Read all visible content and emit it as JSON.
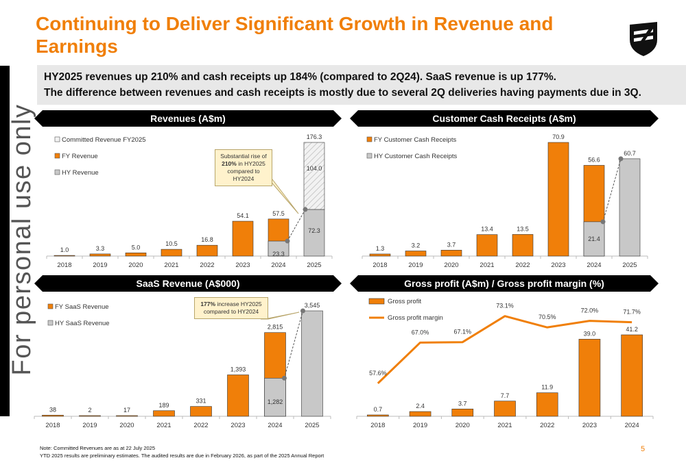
{
  "title": "Continuing to Deliver Significant Growth in Revenue and Earnings",
  "subtitle_lines": [
    "HY2025 revenues up 210% and cash receipts up 184% (compared to 2Q24). SaaS revenue is up 177%.",
    "The difference between revenues and cash receipts is mostly due to several 2Q deliveries having payments due in 3Q."
  ],
  "watermark": "For personal use only",
  "colors": {
    "orange": "#f07f09",
    "grey": "#c8c8c8",
    "black": "#000000"
  },
  "logo_icon": "shield-logo-icon",
  "banners": {
    "revenues": "Revenues (A$m)",
    "cash": "Customer Cash Receipts (A$m)",
    "saas": "SaaS Revenue (A$000)",
    "gross": "Gross profit (A$m) / Gross profit margin (%)"
  },
  "callouts": {
    "revenues": {
      "pre": "Substantial rise of ",
      "bold": "210%",
      "post": " in HY2025 compared to HY2024"
    },
    "saas": {
      "pre": "",
      "bold": "177%",
      "post": " increase HY2025 compared to HY2024"
    }
  },
  "footnotes": [
    "Note: Committed Revenues are as at 22 July 2025",
    "YTD 2025 results are preliminary estimates. The audited results are due in February 2026, as part of the 2025 Annual Report"
  ],
  "page_number": "5",
  "chart_data": [
    {
      "id": "revenues",
      "type": "bar",
      "categories": [
        "2018",
        "2019",
        "2020",
        "2021",
        "2022",
        "2023",
        "2024",
        "2025"
      ],
      "legend": [
        "Committed Revenue FY2025",
        "FY Revenue",
        "HY Revenue"
      ],
      "series": [
        {
          "name": "FY Revenue",
          "values": [
            1.0,
            3.3,
            5.0,
            10.5,
            16.8,
            54.1,
            57.5,
            null
          ],
          "labels": [
            "1.0",
            "3.3",
            "5.0",
            "10.5",
            "16.8",
            "54.1",
            "57.5",
            null
          ]
        },
        {
          "name": "HY Revenue",
          "values": [
            null,
            null,
            null,
            null,
            null,
            null,
            23.3,
            72.3
          ],
          "labels": [
            null,
            null,
            null,
            null,
            null,
            null,
            "23.3",
            "72.3"
          ]
        },
        {
          "name": "Committed Revenue FY2025",
          "values": [
            null,
            null,
            null,
            null,
            null,
            null,
            null,
            104.0
          ],
          "labels": [
            null,
            null,
            null,
            null,
            null,
            null,
            null,
            "104.0"
          ]
        }
      ],
      "totals": {
        "2025": "176.3"
      },
      "ylim": [
        0,
        176.3
      ]
    },
    {
      "id": "cash",
      "type": "bar",
      "categories": [
        "2018",
        "2019",
        "2020",
        "2021",
        "2022",
        "2023",
        "2024",
        "2025"
      ],
      "legend": [
        "FY Customer Cash Receipts",
        "HY Customer Cash Receipts"
      ],
      "series": [
        {
          "name": "FY Customer Cash Receipts",
          "values": [
            1.3,
            3.2,
            3.7,
            13.4,
            13.5,
            70.9,
            56.6,
            null
          ],
          "labels": [
            "1.3",
            "3.2",
            "3.7",
            "13.4",
            "13.5",
            "70.9",
            "56.6",
            null
          ]
        },
        {
          "name": "HY Customer Cash Receipts",
          "values": [
            null,
            null,
            null,
            null,
            null,
            null,
            21.4,
            60.7
          ],
          "labels": [
            null,
            null,
            null,
            null,
            null,
            null,
            "21.4",
            "60.7"
          ]
        }
      ],
      "ylim": [
        0,
        70.9
      ]
    },
    {
      "id": "saas",
      "type": "bar",
      "categories": [
        "2018",
        "2019",
        "2020",
        "2021",
        "2022",
        "2023",
        "2024",
        "2025"
      ],
      "legend": [
        "FY SaaS Revenue",
        "HY SaaS Revenue"
      ],
      "series": [
        {
          "name": "FY SaaS Revenue",
          "values": [
            38,
            2,
            17,
            189,
            331,
            1393,
            2815,
            null
          ],
          "labels": [
            "38",
            "2",
            "17",
            "189",
            "331",
            "1,393",
            "2,815",
            null
          ]
        },
        {
          "name": "HY SaaS Revenue",
          "values": [
            null,
            null,
            null,
            null,
            null,
            null,
            1282,
            3545
          ],
          "labels": [
            null,
            null,
            null,
            null,
            null,
            null,
            "1,282",
            "3,545"
          ]
        }
      ],
      "ylim": [
        0,
        3545
      ]
    },
    {
      "id": "gross",
      "type": "bar",
      "categories": [
        "2018",
        "2019",
        "2020",
        "2021",
        "2022",
        "2023",
        "2024"
      ],
      "legend": [
        "Gross profit",
        "Gross profit margin"
      ],
      "series": [
        {
          "name": "Gross profit",
          "values": [
            0.7,
            2.4,
            3.7,
            7.7,
            11.9,
            39.0,
            41.2
          ],
          "labels": [
            "0.7",
            "2.4",
            "3.7",
            "7.7",
            "11.9",
            "39.0",
            "41.2"
          ]
        },
        {
          "name": "Gross profit margin",
          "values": [
            57.6,
            67.0,
            67.1,
            73.1,
            70.5,
            72.0,
            71.7
          ],
          "labels": [
            "57.6%",
            "67.0%",
            "67.1%",
            "73.1%",
            "70.5%",
            "72.0%",
            "71.7%"
          ]
        }
      ],
      "ylim": [
        0,
        41.2
      ],
      "y2lim": [
        50,
        80
      ]
    }
  ]
}
